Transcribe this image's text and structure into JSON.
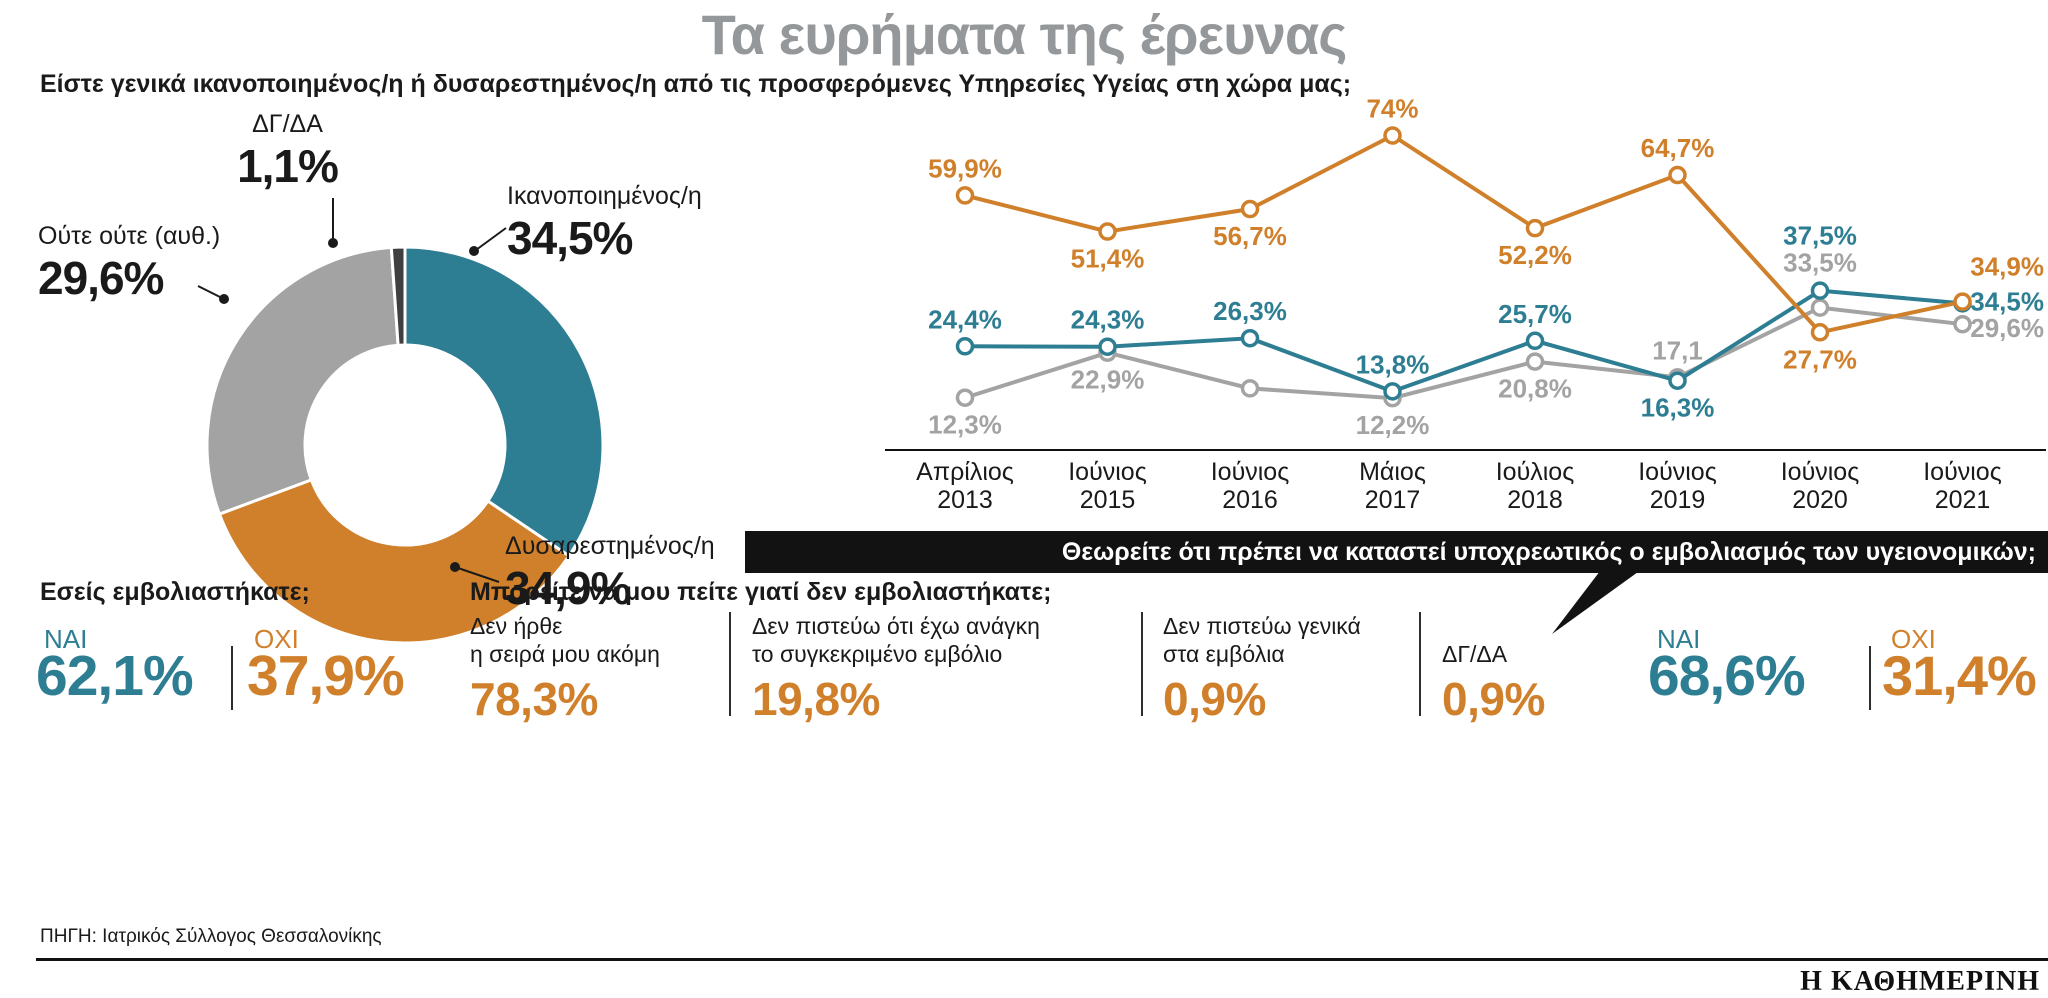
{
  "title": "Τα ευρήματα της έρευνας",
  "question_main": "Είστε γενικά ικανοποιημένος/η ή δυσαρεστημένος/η από τις προσφερόμενες Υπηρεσίες Υγείας στη χώρα μας;",
  "colors": {
    "teal": "#2e7e93",
    "orange": "#d0802b",
    "gray": "#a3a3a3",
    "dark": "#3f3f3f",
    "banner": "#121212",
    "title_gray": "#95989a"
  },
  "chart_data": [
    {
      "type": "pie",
      "title": "",
      "segments": [
        {
          "label": "Ικανοποιημένος/η",
          "value": 34.5,
          "value_text": "34,5%",
          "color_key": "teal"
        },
        {
          "label": "Δυσαρεστημένος/η",
          "value": 34.9,
          "value_text": "34,9%",
          "color_key": "orange"
        },
        {
          "label": "Ούτε ούτε (αυθ.)",
          "value": 29.6,
          "value_text": "29,6%",
          "color_key": "gray"
        },
        {
          "label": "ΔΓ/ΔΑ",
          "value": 1.1,
          "value_text": "1,1%",
          "color_key": "dark"
        }
      ]
    },
    {
      "type": "line",
      "categories": [
        [
          "Απρίλιος",
          "2013"
        ],
        [
          "Ιούνιος",
          "2015"
        ],
        [
          "Ιούνιος",
          "2016"
        ],
        [
          "Μάιος",
          "2017"
        ],
        [
          "Ιούλιος",
          "2018"
        ],
        [
          "Ιούνιος",
          "2019"
        ],
        [
          "Ιούνιος",
          "2020"
        ],
        [
          "Ιούνιος",
          "2021"
        ]
      ],
      "ylim": [
        0,
        80
      ],
      "grid": false,
      "legend": "none",
      "series": [
        {
          "name": "Δυσαρεστημένος/η",
          "color_key": "orange",
          "values": [
            59.9,
            51.4,
            56.7,
            74,
            52.2,
            64.7,
            27.7,
            34.9
          ],
          "labels": [
            "59,9%",
            "51,4%",
            "56,7%",
            "74%",
            "52,2%",
            "64,7%",
            "27,7%",
            "34,9%"
          ],
          "label_pos": [
            "above",
            "below",
            "below",
            "above",
            "below",
            "above",
            "below",
            "right-a"
          ]
        },
        {
          "name": "Ικανοποιημένος/η",
          "color_key": "teal",
          "values": [
            24.4,
            24.3,
            26.3,
            13.8,
            25.7,
            16.3,
            37.5,
            34.5
          ],
          "labels": [
            "24,4%",
            "24,3%",
            "26,3%",
            "13,8%",
            "25,7%",
            "16,3%",
            "37,5%",
            "34,5%"
          ],
          "label_pos": [
            "above",
            "above",
            "above",
            "above",
            "above",
            "below",
            "high-a",
            "right-b"
          ]
        },
        {
          "name": "Ούτε ούτε (αυθ.)",
          "color_key": "gray",
          "values": [
            12.3,
            22.9,
            14.5,
            12.2,
            20.8,
            17.1,
            33.5,
            29.6
          ],
          "labels": [
            "12,3%",
            "22,9%",
            "",
            "12,2%",
            "20,8%",
            "17,1",
            "33,5%",
            "29,6%"
          ],
          "label_pos": [
            "below",
            "below",
            "none",
            "below",
            "below",
            "above",
            "high-b",
            "right-c"
          ]
        }
      ]
    }
  ],
  "banner": {
    "text": "Θεωρείτε ότι πρέπει να καταστεί υποχρεωτικός ο εμβολιασμός των υγειονομικών;"
  },
  "vaccinated": {
    "question": "Εσείς εμβολιαστήκατε;",
    "yes_label": "ΝΑΙ",
    "yes_value": "62,1%",
    "no_label": "ΟΧΙ",
    "no_value": "37,9%"
  },
  "why_not": {
    "question": "Μπορείτε να μου πείτε γιατί δεν εμβολιαστήκατε;",
    "reasons": [
      {
        "label_lines": [
          "Δεν ήρθε",
          "η σειρά μου ακόμη"
        ],
        "value": "78,3%"
      },
      {
        "label_lines": [
          "Δεν πιστεύω ότι έχω ανάγκη",
          "το συγκεκριμένο εμβόλιο"
        ],
        "value": "19,8%"
      },
      {
        "label_lines": [
          "Δεν πιστεύω γενικά",
          "στα εμβόλια"
        ],
        "value": "0,9%"
      },
      {
        "label_lines": [
          "ΔΓ/ΔΑ"
        ],
        "value": "0,9%"
      }
    ]
  },
  "mandatory": {
    "yes_label": "ΝΑΙ",
    "yes_value": "68,6%",
    "no_label": "ΟΧΙ",
    "no_value": "31,4%"
  },
  "source": "ΠΗΓΗ: Ιατρικός Σύλλογος Θεσσαλονίκης",
  "logo": "Η ΚΑΘΗΜΕΡΙΝΗ"
}
